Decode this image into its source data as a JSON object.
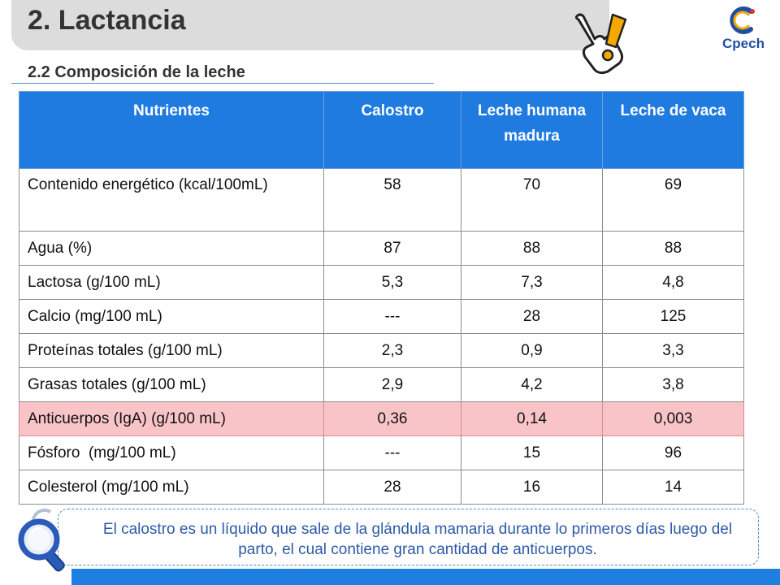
{
  "header": {
    "title": "2. Lactancia",
    "subtitle": "2.2 Composición de la leche",
    "logo_text": "Cpech"
  },
  "table": {
    "columns": [
      "Nutrientes",
      "Calostro",
      "Leche humana madura",
      "Leche de vaca"
    ],
    "rows": [
      {
        "nutrient": "Contenido energético (kcal/100mL)",
        "calostro": "58",
        "humana": "70",
        "vaca": "69"
      },
      {
        "nutrient": "Agua (%)",
        "calostro": "87",
        "humana": "88",
        "vaca": "88"
      },
      {
        "nutrient": "Lactosa (g/100 mL)",
        "calostro": "5,3",
        "humana": "7,3",
        "vaca": "4,8"
      },
      {
        "nutrient": "Calcio (mg/100 mL)",
        "calostro": "---",
        "humana": "28",
        "vaca": "125"
      },
      {
        "nutrient": "Proteínas totales (g/100 mL)",
        "calostro": "2,3",
        "humana": "0,9",
        "vaca": "3,3"
      },
      {
        "nutrient": "Grasas totales (g/100 mL)",
        "calostro": "2,9",
        "humana": "4,2",
        "vaca": "3,8"
      },
      {
        "nutrient": "Anticuerpos (IgA) (g/100 mL)",
        "calostro": "0,36",
        "humana": "0,14",
        "vaca": "0,003"
      },
      {
        "nutrient": "Fósforo  (mg/100 mL)",
        "calostro": "---",
        "humana": "15",
        "vaca": "96"
      },
      {
        "nutrient": "Colesterol (mg/100 mL)",
        "calostro": "28",
        "humana": "16",
        "vaca": "14"
      }
    ]
  },
  "note": {
    "text": "El calostro es  un líquido que sale de la glándula mamaria durante lo primeros días luego del parto, el cual contiene gran cantidad de anticuerpos."
  },
  "colors": {
    "header_blue": "#1f7be0",
    "highlight_row": "#f8c4c8",
    "note_text": "#2d5aa8"
  },
  "icons": [
    "pointing-hand-icon",
    "exclamation-icon",
    "cpech-logo",
    "magnifier-icon"
  ]
}
